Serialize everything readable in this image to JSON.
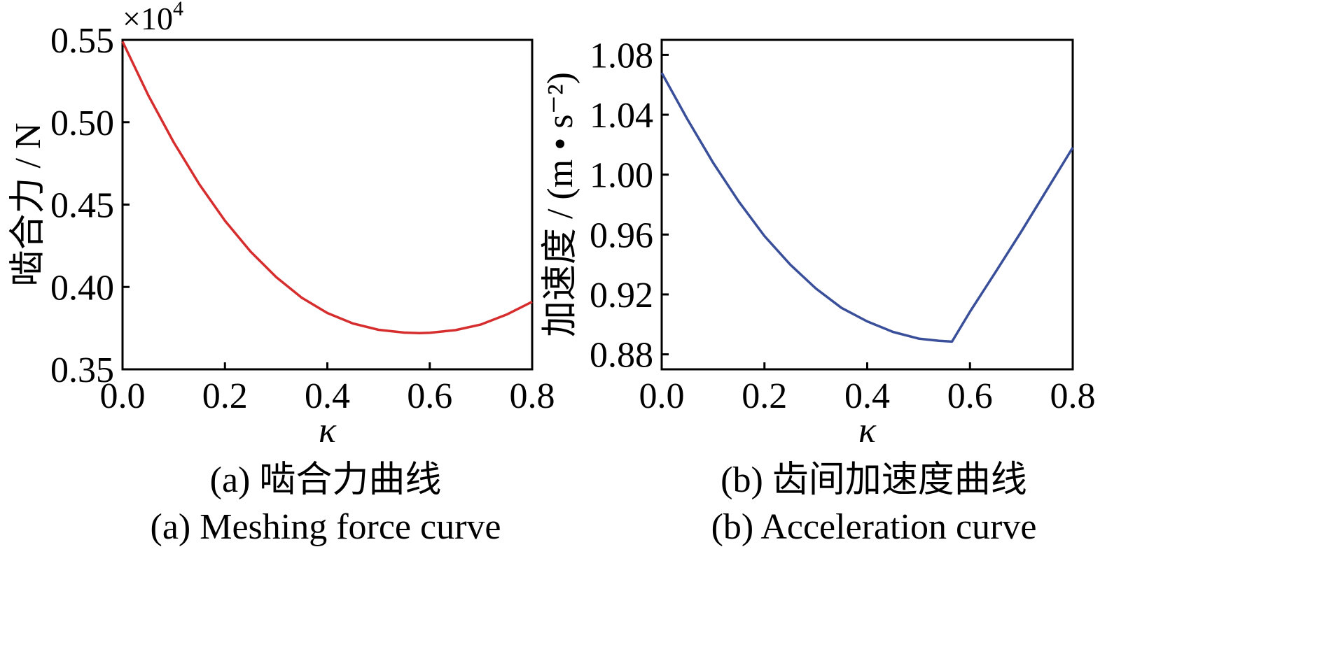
{
  "chart_data": [
    {
      "type": "line",
      "series": [
        {
          "color": "#d62e2e",
          "x": [
            0.0,
            0.05,
            0.1,
            0.15,
            0.2,
            0.25,
            0.3,
            0.35,
            0.4,
            0.45,
            0.5,
            0.55,
            0.58,
            0.6,
            0.65,
            0.7,
            0.75,
            0.8
          ],
          "y": [
            0.549,
            0.5165,
            0.4878,
            0.4623,
            0.4402,
            0.4215,
            0.406,
            0.3935,
            0.3842,
            0.3778,
            0.374,
            0.3723,
            0.372,
            0.3722,
            0.3738,
            0.3772,
            0.3832,
            0.391
          ]
        }
      ],
      "xlabel": "κ",
      "ylabel": "啮合力 / N",
      "multiplier": "×10",
      "multiplier_exp": "4",
      "xlim": [
        0,
        0.8
      ],
      "ylim": [
        0.35,
        0.55
      ],
      "xticks": [
        "0.0",
        "0.2",
        "0.4",
        "0.6",
        "0.8"
      ],
      "yticks": [
        "0.35",
        "0.40",
        "0.45",
        "0.50",
        "0.55"
      ],
      "caption_cn": "(a) 啮合力曲线",
      "caption_en": "(a) Meshing force curve"
    },
    {
      "type": "line",
      "series": [
        {
          "color": "#3a4f9a",
          "x": [
            0.0,
            0.05,
            0.1,
            0.15,
            0.2,
            0.25,
            0.3,
            0.35,
            0.4,
            0.45,
            0.5,
            0.54,
            0.565,
            0.6,
            0.65,
            0.7,
            0.75,
            0.8
          ],
          "y": [
            1.068,
            1.037,
            1.008,
            0.982,
            0.959,
            0.94,
            0.924,
            0.911,
            0.902,
            0.895,
            0.8905,
            0.889,
            0.8885,
            0.9085,
            0.935,
            0.962,
            0.99,
            1.018
          ]
        }
      ],
      "xlabel": "κ",
      "ylabel": "加速度 / (m • s⁻²)",
      "xlim": [
        0,
        0.8
      ],
      "ylim": [
        0.87,
        1.09
      ],
      "xticks": [
        "0.0",
        "0.2",
        "0.4",
        "0.6",
        "0.8"
      ],
      "yticks": [
        "0.88",
        "0.92",
        "0.96",
        "1.00",
        "1.04",
        "1.08"
      ],
      "caption_cn": "(b) 齿间加速度曲线",
      "caption_en": "(b) Acceleration curve"
    }
  ]
}
